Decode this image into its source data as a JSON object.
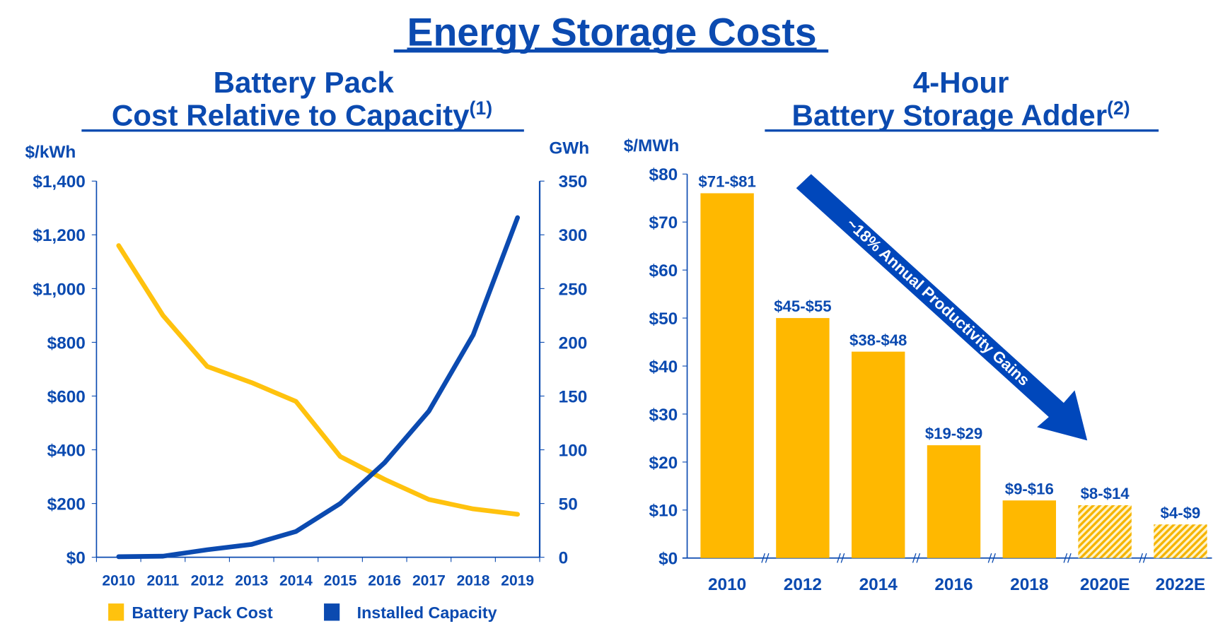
{
  "title": "Energy Storage Costs",
  "colors": {
    "blue": "#0B4AB0",
    "gold": "#FFB800",
    "arrow": "#0047BB"
  },
  "chart_data": [
    {
      "type": "line",
      "title_line1": "Battery Pack",
      "title_line2": "Cost Relative to Capacity",
      "title_sup": "(1)",
      "ylabel_left": "$/kWh",
      "ylabel_right": "GWh",
      "x": [
        "2010",
        "2011",
        "2012",
        "2013",
        "2014",
        "2015",
        "2016",
        "2017",
        "2018",
        "2019"
      ],
      "ylim_left": [
        0,
        1400
      ],
      "ylim_right": [
        0,
        350
      ],
      "yticks_left": [
        "$0",
        "$200",
        "$400",
        "$600",
        "$800",
        "$1,000",
        "$1,200",
        "$1,400"
      ],
      "yticks_right": [
        "0",
        "50",
        "100",
        "150",
        "200",
        "250",
        "300",
        "350"
      ],
      "grid": false,
      "legend_placement": "bottom",
      "series": [
        {
          "name": "Battery Pack Cost",
          "axis": "left",
          "color": "#FFC20E",
          "values": [
            1160,
            900,
            710,
            650,
            580,
            375,
            290,
            215,
            180,
            160
          ]
        },
        {
          "name": "Installed Capacity",
          "axis": "right",
          "color": "#0B4AB0",
          "values": [
            0.5,
            1,
            7,
            12,
            24,
            50,
            88,
            136,
            207,
            316
          ]
        }
      ]
    },
    {
      "type": "bar",
      "title_line1": "4-Hour",
      "title_line2": "Battery Storage Adder",
      "title_sup": "(2)",
      "ylabel": "$/MWh",
      "categories": [
        "2010",
        "2012",
        "2014",
        "2016",
        "2018",
        "2020E",
        "2022E"
      ],
      "values": [
        76,
        50,
        43,
        23.5,
        12,
        11,
        7
      ],
      "data_labels": [
        "$71-$81",
        "$45-$55",
        "$38-$48",
        "$19-$29",
        "$9-$16",
        "$8-$14",
        "$4-$9"
      ],
      "estimated": [
        false,
        false,
        false,
        false,
        false,
        true,
        true
      ],
      "ylim": [
        0,
        80
      ],
      "yticks": [
        "$0",
        "$10",
        "$20",
        "$30",
        "$40",
        "$50",
        "$60",
        "$70",
        "$80"
      ],
      "grid": false,
      "annotation": "~18% Annual Productivity Gains"
    }
  ]
}
